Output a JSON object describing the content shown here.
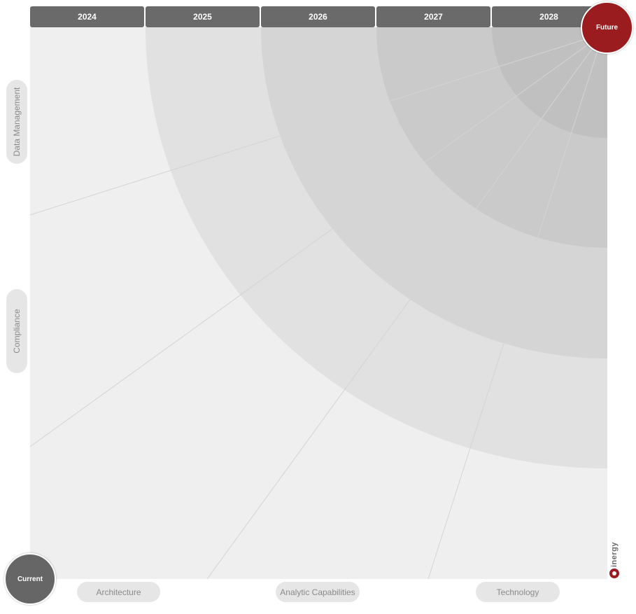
{
  "years": [
    "2024",
    "2025",
    "2026",
    "2027",
    "2028"
  ],
  "future_label": "Future",
  "current_label": "Current",
  "bottom_axis": [
    "Architecture",
    "Analytic Capabilities",
    "Technology"
  ],
  "left_axis": [
    "Data Management",
    "Compliance"
  ],
  "logo_text": "inergy",
  "colors": {
    "background": "#efefef",
    "ring_1": "#e1e1e1",
    "ring_2": "#d5d5d5",
    "ring_3": "#cacaca",
    "ring_4": "#c0c0c0",
    "header": "#6a6a6a",
    "future": "#9b1c1f",
    "current": "#666666",
    "pill": "#e6e6e6"
  }
}
